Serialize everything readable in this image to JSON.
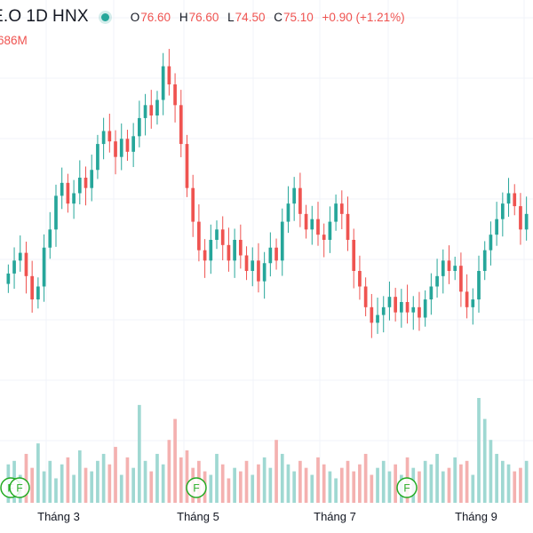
{
  "header": {
    "symbol": "E.O",
    "interval": "1D",
    "exchange": "HNX",
    "ohlc": {
      "open_label": "O",
      "open": "76.60",
      "high_label": "H",
      "high": "76.60",
      "low_label": "L",
      "low": "74.50",
      "close_label": "C",
      "close": "75.10",
      "change": "+0.90 (+1.21%)"
    },
    "volume_text": "686M"
  },
  "colors": {
    "up": "#26a69a",
    "down": "#ef5350",
    "up_volume": "#9fd8d2",
    "down_volume": "#f4b1b0",
    "grid": "#f0f3fa",
    "event_marker": "#22ab22"
  },
  "chart_data": {
    "type": "candlestick",
    "x_tick_labels": [
      "Tháng 3",
      "Tháng 5",
      "Tháng 7",
      "Tháng 9"
    ],
    "event_markers": [
      "F",
      "F",
      "F",
      "F"
    ],
    "price_range_approx": [
      68.0,
      80.0
    ],
    "grid": true,
    "close_series_approx": [
      71.5,
      72.0,
      72.3,
      71.4,
      70.5,
      71.0,
      72.5,
      73.2,
      74.5,
      75.0,
      74.2,
      74.6,
      75.2,
      74.8,
      75.5,
      76.5,
      77.0,
      76.6,
      76.0,
      76.7,
      76.2,
      76.8,
      77.5,
      78.0,
      77.6,
      78.2,
      79.5,
      78.8,
      78.0,
      76.5,
      74.8,
      73.5,
      72.4,
      72.0,
      72.8,
      73.2,
      72.6,
      72.0,
      72.8,
      72.2,
      71.6,
      72.0,
      71.2,
      71.9,
      72.5,
      72.0,
      73.5,
      74.2,
      74.8,
      73.8,
      73.2,
      73.6,
      73.0,
      72.8,
      73.5,
      74.2,
      73.8,
      72.8,
      71.6,
      71.0,
      70.2,
      69.6,
      69.9,
      70.2,
      70.6,
      70.0,
      70.4,
      70.0,
      70.2,
      69.8,
      70.5,
      71.0,
      71.4,
      72.0,
      71.6,
      71.8,
      70.8,
      70.2,
      70.5,
      71.6,
      72.4,
      73.0,
      73.6,
      74.2,
      74.6,
      74.1,
      73.2,
      73.8
    ],
    "volume_series_approx": [
      55,
      60,
      40,
      70,
      50,
      85,
      45,
      60,
      35,
      55,
      65,
      40,
      75,
      50,
      45,
      60,
      70,
      55,
      80,
      40,
      65,
      50,
      140,
      60,
      45,
      70,
      55,
      90,
      120,
      65,
      75,
      50,
      60,
      45,
      40,
      70,
      55,
      35,
      50,
      45,
      60,
      40,
      55,
      65,
      50,
      90,
      70,
      55,
      45,
      60,
      50,
      40,
      65,
      55,
      45,
      35,
      50,
      60,
      45,
      55,
      70,
      40,
      50,
      60,
      45,
      55,
      40,
      65,
      50,
      45,
      60,
      55,
      70,
      45,
      50,
      65,
      55,
      60,
      40,
      150,
      120,
      90,
      70,
      60,
      55,
      45,
      50,
      60
    ]
  }
}
